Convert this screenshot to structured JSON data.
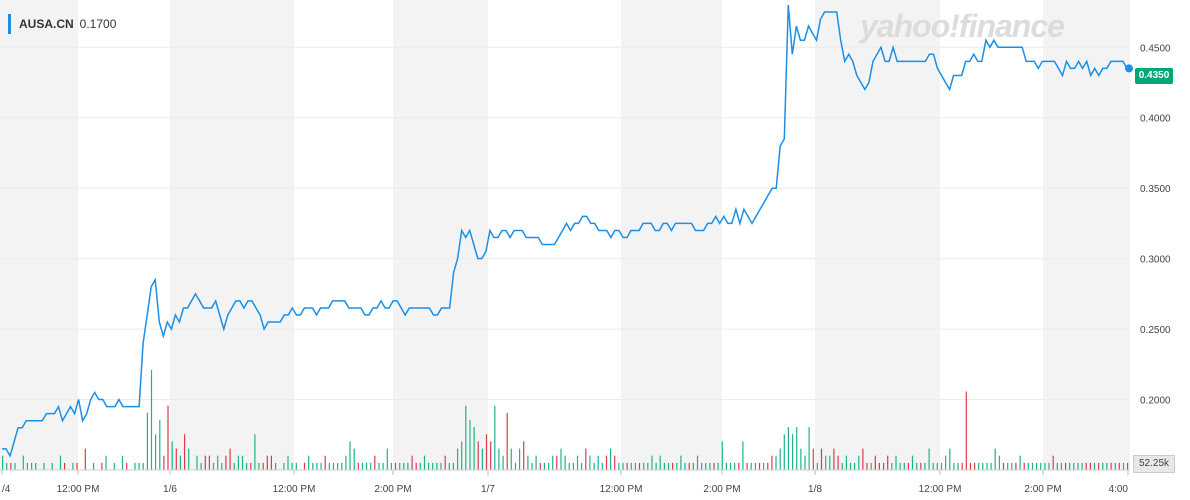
{
  "legend": {
    "symbol": "AUSA.CN",
    "value": "0.1700"
  },
  "watermark": "yahoo!finance",
  "chart_data": {
    "type": "line",
    "series": [
      {
        "name": "AUSA.CN",
        "color": "#1a8fe8",
        "y": [
          0.165,
          0.165,
          0.16,
          0.17,
          0.18,
          0.18,
          0.185,
          0.185,
          0.185,
          0.185,
          0.185,
          0.19,
          0.19,
          0.19,
          0.195,
          0.185,
          0.19,
          0.195,
          0.19,
          0.2,
          0.185,
          0.19,
          0.2,
          0.205,
          0.2,
          0.2,
          0.195,
          0.195,
          0.195,
          0.2,
          0.195,
          0.195,
          0.195,
          0.195,
          0.195,
          0.24,
          0.26,
          0.28,
          0.285,
          0.255,
          0.245,
          0.255,
          0.25,
          0.26,
          0.255,
          0.265,
          0.265,
          0.27,
          0.275,
          0.27,
          0.265,
          0.265,
          0.265,
          0.27,
          0.26,
          0.25,
          0.26,
          0.265,
          0.27,
          0.27,
          0.265,
          0.27,
          0.27,
          0.265,
          0.26,
          0.25,
          0.255,
          0.255,
          0.255,
          0.255,
          0.26,
          0.26,
          0.265,
          0.26,
          0.26,
          0.265,
          0.265,
          0.265,
          0.26,
          0.265,
          0.265,
          0.265,
          0.27,
          0.27,
          0.27,
          0.27,
          0.265,
          0.265,
          0.265,
          0.265,
          0.26,
          0.26,
          0.265,
          0.265,
          0.27,
          0.265,
          0.265,
          0.27,
          0.27,
          0.265,
          0.26,
          0.265,
          0.265,
          0.265,
          0.265,
          0.265,
          0.265,
          0.26,
          0.26,
          0.265,
          0.265,
          0.265,
          0.29,
          0.3,
          0.32,
          0.315,
          0.32,
          0.31,
          0.3,
          0.3,
          0.305,
          0.32,
          0.315,
          0.315,
          0.32,
          0.32,
          0.315,
          0.32,
          0.32,
          0.32,
          0.315,
          0.315,
          0.315,
          0.315,
          0.31,
          0.31,
          0.31,
          0.31,
          0.315,
          0.32,
          0.325,
          0.32,
          0.325,
          0.325,
          0.33,
          0.33,
          0.325,
          0.325,
          0.32,
          0.32,
          0.32,
          0.315,
          0.32,
          0.32,
          0.315,
          0.315,
          0.32,
          0.32,
          0.32,
          0.325,
          0.325,
          0.325,
          0.32,
          0.32,
          0.325,
          0.325,
          0.32,
          0.325,
          0.325,
          0.325,
          0.325,
          0.325,
          0.32,
          0.32,
          0.32,
          0.325,
          0.325,
          0.33,
          0.325,
          0.33,
          0.325,
          0.325,
          0.335,
          0.325,
          0.335,
          0.33,
          0.325,
          0.33,
          0.335,
          0.34,
          0.345,
          0.35,
          0.35,
          0.38,
          0.385,
          0.48,
          0.445,
          0.465,
          0.455,
          0.455,
          0.465,
          0.46,
          0.455,
          0.47,
          0.475,
          0.475,
          0.475,
          0.475,
          0.455,
          0.44,
          0.445,
          0.44,
          0.43,
          0.425,
          0.42,
          0.425,
          0.44,
          0.445,
          0.45,
          0.44,
          0.44,
          0.45,
          0.44,
          0.44,
          0.44,
          0.44,
          0.44,
          0.44,
          0.44,
          0.44,
          0.445,
          0.445,
          0.435,
          0.43,
          0.425,
          0.42,
          0.43,
          0.43,
          0.43,
          0.44,
          0.44,
          0.445,
          0.44,
          0.44,
          0.455,
          0.45,
          0.455,
          0.45,
          0.45,
          0.45,
          0.45,
          0.45,
          0.45,
          0.45,
          0.44,
          0.44,
          0.44,
          0.435,
          0.44,
          0.44,
          0.44,
          0.44,
          0.435,
          0.43,
          0.44,
          0.435,
          0.435,
          0.44,
          0.435,
          0.44,
          0.43,
          0.435,
          0.43,
          0.435,
          0.435,
          0.44,
          0.44,
          0.44,
          0.44,
          0.435
        ]
      }
    ],
    "volume": {
      "values": [
        2,
        1,
        1,
        1,
        0,
        2,
        1,
        1,
        1,
        0,
        1,
        0,
        1,
        0,
        2,
        1,
        0,
        1,
        1,
        0,
        3,
        0,
        1,
        0,
        1,
        2,
        0,
        1,
        0,
        2,
        1,
        0,
        1,
        1,
        1,
        8,
        14,
        5,
        7,
        2,
        9,
        4,
        3,
        2,
        5,
        3,
        0,
        2,
        1,
        2,
        2,
        1,
        2,
        1,
        2,
        3,
        1,
        2,
        2,
        1,
        1,
        5,
        1,
        1,
        2,
        2,
        1,
        0,
        1,
        2,
        1,
        1,
        0,
        1,
        2,
        1,
        1,
        1,
        2,
        1,
        1,
        1,
        1,
        2,
        4,
        3,
        1,
        1,
        1,
        1,
        2,
        1,
        1,
        3,
        1,
        1,
        1,
        1,
        1,
        2,
        1,
        1,
        2,
        1,
        1,
        1,
        1,
        2,
        1,
        1,
        3,
        4,
        9,
        7,
        6,
        4,
        3,
        5,
        4,
        9,
        3,
        2,
        8,
        3,
        1,
        3,
        4,
        2,
        1,
        2,
        1,
        1,
        1,
        2,
        2,
        3,
        2,
        1,
        1,
        2,
        1,
        3,
        2,
        1,
        2,
        1,
        2,
        3,
        2,
        1,
        1,
        1,
        1,
        1,
        1,
        1,
        1,
        2,
        1,
        2,
        1,
        1,
        1,
        1,
        2,
        1,
        1,
        1,
        2,
        1,
        1,
        1,
        1,
        1,
        4,
        1,
        1,
        1,
        1,
        4,
        1,
        1,
        1,
        1,
        1,
        1,
        2,
        2,
        3,
        5,
        6,
        5,
        6,
        3,
        2,
        6,
        3,
        1,
        3,
        2,
        2,
        3,
        2,
        1,
        2,
        1,
        1,
        2,
        3,
        1,
        1,
        2,
        1,
        1,
        2,
        1,
        2,
        1,
        1,
        1,
        2,
        1,
        1,
        1,
        3,
        1,
        1,
        1,
        2,
        3,
        1,
        1,
        1,
        11,
        1,
        1,
        1,
        1,
        1,
        1,
        3,
        2,
        1,
        1,
        1,
        1,
        2,
        1,
        1,
        1,
        1,
        1,
        1,
        1,
        2,
        1,
        1,
        1,
        1,
        1,
        1,
        1,
        1,
        1,
        1,
        1,
        1,
        1,
        1,
        1,
        1,
        1,
        1
      ],
      "up_color": "#1db48a",
      "down_color": "#e0394a",
      "last_label": "52.25k"
    },
    "last_price_label": "0.4350",
    "y_ticks": [
      "0.4500",
      "0.4000",
      "0.3500",
      "0.3000",
      "0.2500",
      "0.2000"
    ],
    "x_tick_labels": [
      "/4",
      "12:00 PM",
      "1/6",
      "12:00 PM",
      "2:00 PM",
      "1/7",
      "12:00 PM",
      "2:00 PM",
      "1/8",
      "12:00 PM",
      "2:00 PM",
      "4:00"
    ],
    "ylim": [
      0.15,
      0.48
    ],
    "grid": true
  }
}
